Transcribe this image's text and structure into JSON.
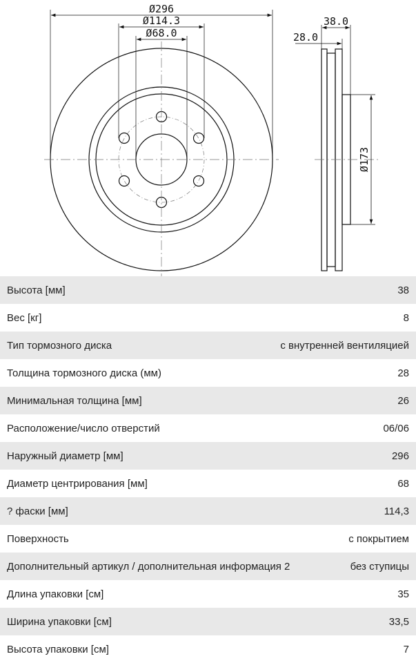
{
  "drawing": {
    "dims": {
      "outer": "Ø296",
      "bolt_circle": "Ø114.3",
      "center_bore": "Ø68.0",
      "height": "38.0",
      "thickness": "28.0",
      "hub": "Ø173"
    }
  },
  "specs": [
    {
      "label": "Высота [мм]",
      "value": "38"
    },
    {
      "label": "Вес [кг]",
      "value": "8"
    },
    {
      "label": "Тип тормозного диска",
      "value": "с внутренней вентиляцией"
    },
    {
      "label": "Толщина тормозного диска (мм)",
      "value": "28"
    },
    {
      "label": "Минимальная толщина [мм]",
      "value": "26"
    },
    {
      "label": "Расположение/число отверстий",
      "value": "06/06"
    },
    {
      "label": "Наружный диаметр [мм]",
      "value": "296"
    },
    {
      "label": "Диаметр центрирования [мм]",
      "value": "68"
    },
    {
      "label": "? фаски [мм]",
      "value": "114,3"
    },
    {
      "label": "Поверхность",
      "value": "с покрытием"
    },
    {
      "label": "Дополнительный артикул / дополнительная информация 2",
      "value": "без ступицы"
    },
    {
      "label": "Длина упаковки [см]",
      "value": "35"
    },
    {
      "label": "Ширина упаковки [см]",
      "value": "33,5"
    },
    {
      "label": "Высота упаковки [см]",
      "value": "7"
    }
  ]
}
